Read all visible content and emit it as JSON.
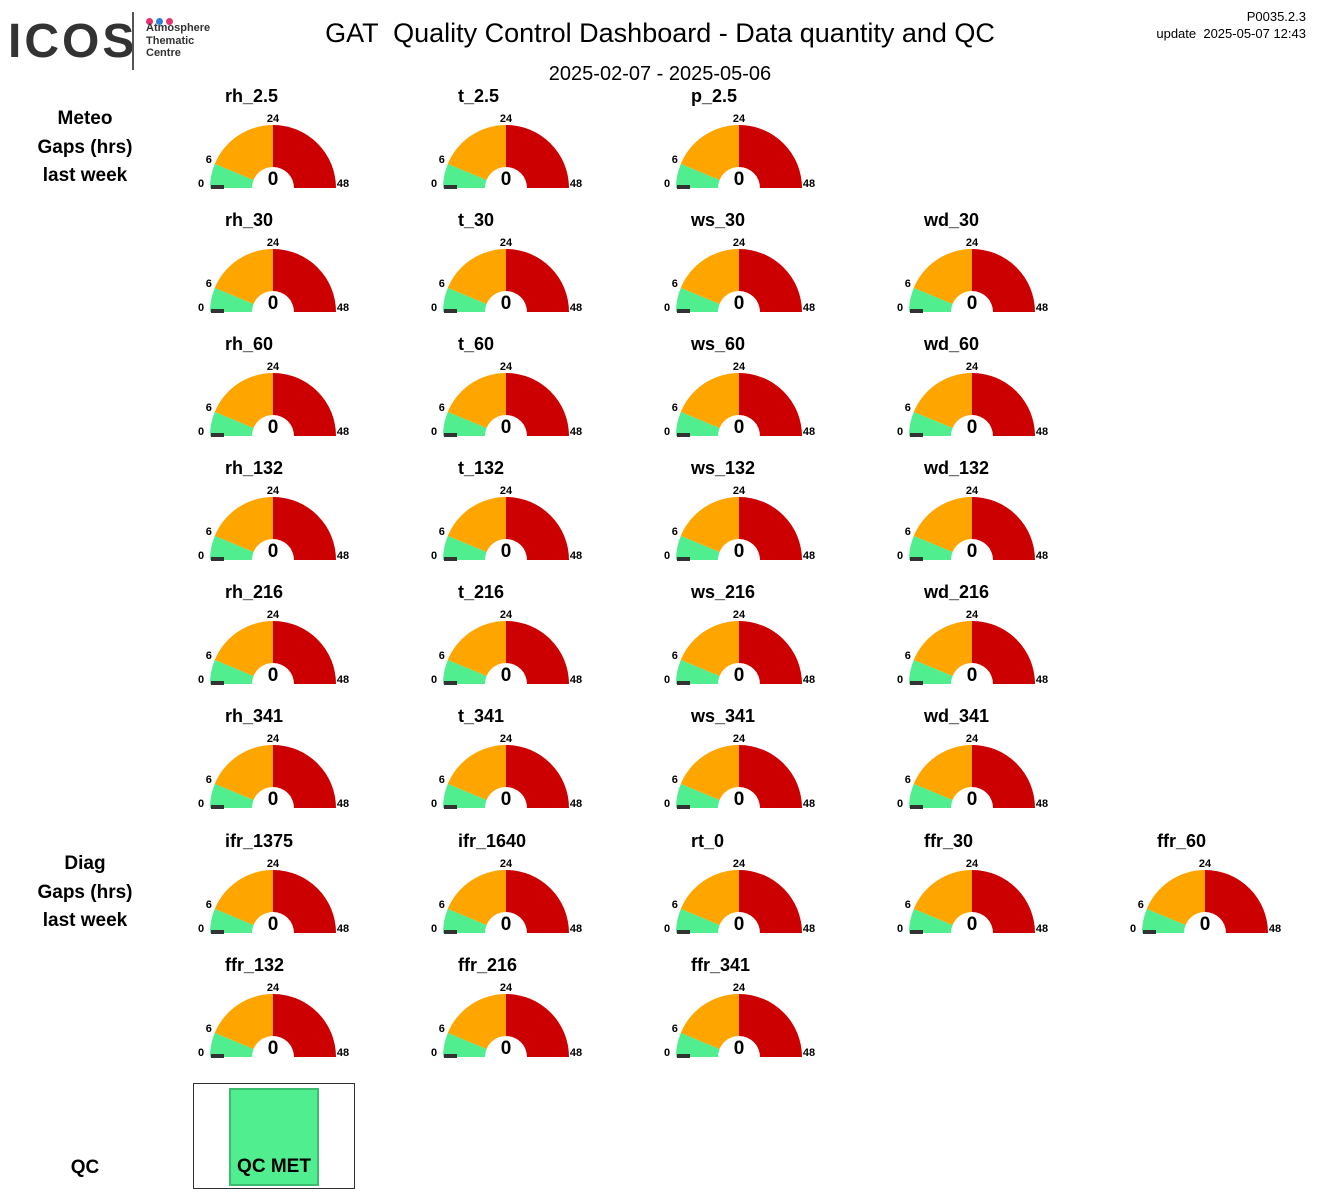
{
  "header": {
    "logo_text": "ICOS",
    "logo_sub": [
      "Atmosphere",
      "Thematic",
      "Centre"
    ],
    "logo_dot_colors": [
      "#e6336e",
      "#2e7fd6",
      "#e6336e"
    ],
    "title": "GAT  Quality Control Dashboard - Data quantity and QC",
    "date_range": "2025-02-07 - 2025-05-06",
    "version": "P0035.2.3",
    "update": "update  2025-05-07 12:43"
  },
  "sections": {
    "meteo": [
      "Meteo",
      "Gaps (hrs)",
      "last week"
    ],
    "diag": [
      "Diag",
      "Gaps (hrs)",
      "last week"
    ],
    "qc": "QC"
  },
  "gauge_scale": {
    "min": "0",
    "low": "6",
    "mid": "24",
    "max": "48",
    "colors": {
      "low": "#50ee8f",
      "mid": "#ffa500",
      "high": "#cc0000",
      "needle": "#333333"
    }
  },
  "gauges": {
    "rh_2_5": {
      "name": "rh_2.5",
      "value": "0"
    },
    "t_2_5": {
      "name": "t_2.5",
      "value": "0"
    },
    "p_2_5": {
      "name": "p_2.5",
      "value": "0"
    },
    "rh_30": {
      "name": "rh_30",
      "value": "0"
    },
    "t_30": {
      "name": "t_30",
      "value": "0"
    },
    "ws_30": {
      "name": "ws_30",
      "value": "0"
    },
    "wd_30": {
      "name": "wd_30",
      "value": "0"
    },
    "rh_60": {
      "name": "rh_60",
      "value": "0"
    },
    "t_60": {
      "name": "t_60",
      "value": "0"
    },
    "ws_60": {
      "name": "ws_60",
      "value": "0"
    },
    "wd_60": {
      "name": "wd_60",
      "value": "0"
    },
    "rh_132": {
      "name": "rh_132",
      "value": "0"
    },
    "t_132": {
      "name": "t_132",
      "value": "0"
    },
    "ws_132": {
      "name": "ws_132",
      "value": "0"
    },
    "wd_132": {
      "name": "wd_132",
      "value": "0"
    },
    "rh_216": {
      "name": "rh_216",
      "value": "0"
    },
    "t_216": {
      "name": "t_216",
      "value": "0"
    },
    "ws_216": {
      "name": "ws_216",
      "value": "0"
    },
    "wd_216": {
      "name": "wd_216",
      "value": "0"
    },
    "rh_341": {
      "name": "rh_341",
      "value": "0"
    },
    "t_341": {
      "name": "t_341",
      "value": "0"
    },
    "ws_341": {
      "name": "ws_341",
      "value": "0"
    },
    "wd_341": {
      "name": "wd_341",
      "value": "0"
    },
    "ifr_1375": {
      "name": "ifr_1375",
      "value": "0"
    },
    "ifr_1640": {
      "name": "ifr_1640",
      "value": "0"
    },
    "rt_0": {
      "name": "rt_0",
      "value": "0"
    },
    "ffr_30": {
      "name": "ffr_30",
      "value": "0"
    },
    "ffr_60": {
      "name": "ffr_60",
      "value": "0"
    },
    "ffr_132": {
      "name": "ffr_132",
      "value": "0"
    },
    "ffr_216": {
      "name": "ffr_216",
      "value": "0"
    },
    "ffr_341": {
      "name": "ffr_341",
      "value": "0"
    }
  },
  "qc": {
    "status": "QC MET",
    "color": "#50ee8f"
  }
}
